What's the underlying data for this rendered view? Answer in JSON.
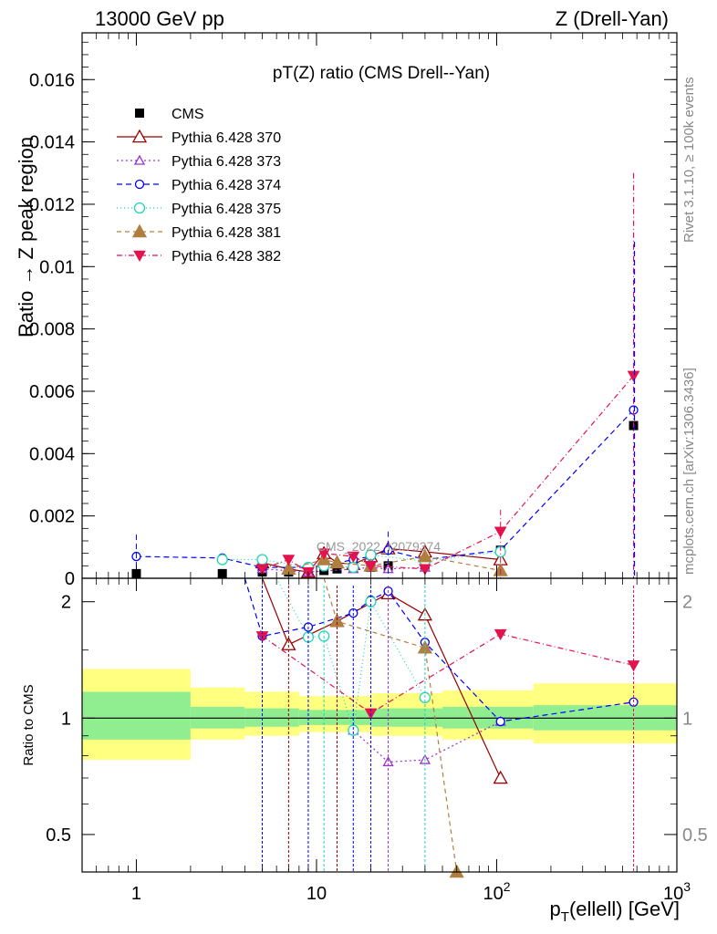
{
  "header": {
    "left": "13000 GeV pp",
    "right": "Z (Drell-Yan)"
  },
  "side_text": {
    "rivet": "Rivet 3.1.10, ≥ 100k events",
    "mcplots": "mcplots.cern.ch [arXiv:1306.3436]"
  },
  "colors": {
    "CMS": "#000000",
    "370": "#990000",
    "373": "#9933cc",
    "374": "#0000ff",
    "375": "#22d4b8",
    "381": "#b07f3f",
    "382": "#e3134d",
    "band_inner": "#90ee90",
    "band_outer": "#ffff80"
  },
  "chart_data": [
    {
      "type": "line",
      "panel": "main",
      "title": "pT(Z) ratio (CMS Drell--Yan)",
      "ylabel": "Ratio → Z peak region",
      "xscale": "log",
      "xlim": [
        0.5,
        1000
      ],
      "ylim": [
        0,
        0.0175
      ],
      "yticks": [
        0,
        0.002,
        0.004,
        0.006,
        0.008,
        0.01,
        0.012,
        0.014,
        0.016
      ],
      "ytick_labels": [
        "0",
        "0.002",
        "0.004",
        "0.006",
        "0.008",
        "0.01",
        "0.012",
        "0.014",
        "0.016"
      ],
      "watermark": "CMS_2022_I2079374",
      "legend_position": "top-left",
      "series": [
        {
          "name": "CMS",
          "key": "CMS",
          "marker": "square",
          "dash": "none",
          "x": [
            1,
            3,
            5,
            7,
            9,
            11,
            13,
            16,
            20,
            25,
            40,
            105,
            575
          ],
          "y": [
            0.00015,
            0.00015,
            0.0002,
            0.0002,
            0.0002,
            0.00025,
            0.0003,
            0.00035,
            0.00035,
            0.0004,
            0.00045,
            0.0009,
            0.0049
          ]
        },
        {
          "name": "Pythia 6.428 370",
          "key": "370",
          "marker": "triangle-open",
          "dash": "none",
          "x": [
            5,
            7,
            9,
            11,
            13,
            16,
            20,
            25,
            40,
            105
          ],
          "y": [
            0.0005,
            0.0003,
            0.0002,
            0.0008,
            0.0005,
            0.00045,
            0.0007,
            0.00095,
            0.00085,
            0.0006
          ]
        },
        {
          "name": "Pythia 6.428 373",
          "key": "373",
          "marker": "triangle-open-small",
          "dash": "2,3",
          "x": [
            5,
            9,
            16,
            20,
            25,
            40
          ],
          "y": [
            0.0003,
            0.0002,
            0.0003,
            0.00035,
            0.0003,
            0.00035
          ]
        },
        {
          "name": "Pythia 6.428 374",
          "key": "374",
          "marker": "circle-open",
          "dash": "6,4",
          "x": [
            1,
            3,
            5,
            9,
            11,
            16,
            20,
            25,
            40,
            105,
            575
          ],
          "y": [
            0.0007,
            0.00065,
            0.00035,
            0.00035,
            0.0004,
            0.0006,
            0.0007,
            0.0009,
            0.0006,
            0.0009,
            0.0054
          ]
        },
        {
          "name": "Pythia 6.428 375",
          "key": "375",
          "marker": "circle-open-large",
          "dash": "1,3",
          "x": [
            3,
            5,
            9,
            11,
            16,
            20,
            40,
            105
          ],
          "y": [
            0.0006,
            0.0006,
            0.00035,
            0.0004,
            0.00035,
            0.00075,
            0.00055,
            0.00085
          ]
        },
        {
          "name": "Pythia 6.428 381",
          "key": "381",
          "marker": "triangle-filled",
          "dash": "5,4",
          "x": [
            7,
            11,
            13,
            20,
            40,
            105
          ],
          "y": [
            0.0003,
            0.0006,
            0.0005,
            0.0004,
            0.0007,
            0.00025
          ]
        },
        {
          "name": "Pythia 6.428 382",
          "key": "382",
          "marker": "triangle-down-filled",
          "dash": "6,3,1,3",
          "x": [
            5,
            7,
            9,
            11,
            16,
            20,
            40,
            105,
            575
          ],
          "y": [
            0.0003,
            0.0006,
            0.0002,
            0.0008,
            0.0007,
            0.0004,
            0.0003,
            0.0015,
            0.0065
          ]
        }
      ]
    },
    {
      "type": "line",
      "panel": "ratio",
      "ylabel": "Ratio to CMS",
      "xlabel": "p_T(ellell) [GeV]",
      "xscale": "log",
      "yscale": "log",
      "xlim": [
        0.5,
        1000
      ],
      "ylim": [
        0.4,
        2.3
      ],
      "yticks": [
        0.5,
        1,
        2
      ],
      "ytick_labels": [
        "0.5",
        "1",
        "2"
      ],
      "xticks": [
        1,
        10,
        100,
        1000
      ],
      "bands": {
        "edges": [
          0.5,
          2,
          4,
          8,
          20,
          50,
          160,
          1000
        ],
        "inner": [
          [
            0.88,
            1.17
          ],
          [
            0.94,
            1.07
          ],
          [
            0.95,
            1.06
          ],
          [
            0.96,
            1.05
          ],
          [
            0.95,
            1.06
          ],
          [
            0.94,
            1.07
          ],
          [
            0.93,
            1.08
          ]
        ],
        "outer": [
          [
            0.78,
            1.34
          ],
          [
            0.88,
            1.2
          ],
          [
            0.9,
            1.17
          ],
          [
            0.92,
            1.14
          ],
          [
            0.9,
            1.16
          ],
          [
            0.88,
            1.18
          ],
          [
            0.86,
            1.23
          ]
        ]
      },
      "series": [
        {
          "key": "370",
          "x": [
            5,
            7,
            13,
            25,
            40,
            105
          ],
          "y": [
            2.6,
            1.55,
            1.78,
            2.1,
            1.85,
            0.7
          ]
        },
        {
          "key": "373",
          "x": [
            16,
            25,
            40,
            105
          ],
          "y": [
            0.93,
            0.77,
            0.78,
            0.98
          ]
        },
        {
          "key": "374",
          "x": [
            4,
            5,
            9,
            16,
            20,
            25,
            40,
            105,
            575
          ],
          "y": [
            2.6,
            1.63,
            1.72,
            1.87,
            2.02,
            2.13,
            1.57,
            0.98,
            1.1
          ]
        },
        {
          "key": "375",
          "x": [
            6,
            9,
            11,
            16,
            20,
            40
          ],
          "y": [
            2.6,
            1.62,
            1.63,
            0.93,
            2.0,
            1.13
          ]
        },
        {
          "key": "381",
          "x": [
            11,
            13,
            40,
            60
          ],
          "y": [
            2.6,
            1.78,
            1.52,
            0.4
          ]
        },
        {
          "key": "382",
          "x": [
            5,
            20,
            105,
            575
          ],
          "y": [
            1.63,
            1.03,
            1.65,
            1.37
          ]
        }
      ]
    }
  ]
}
